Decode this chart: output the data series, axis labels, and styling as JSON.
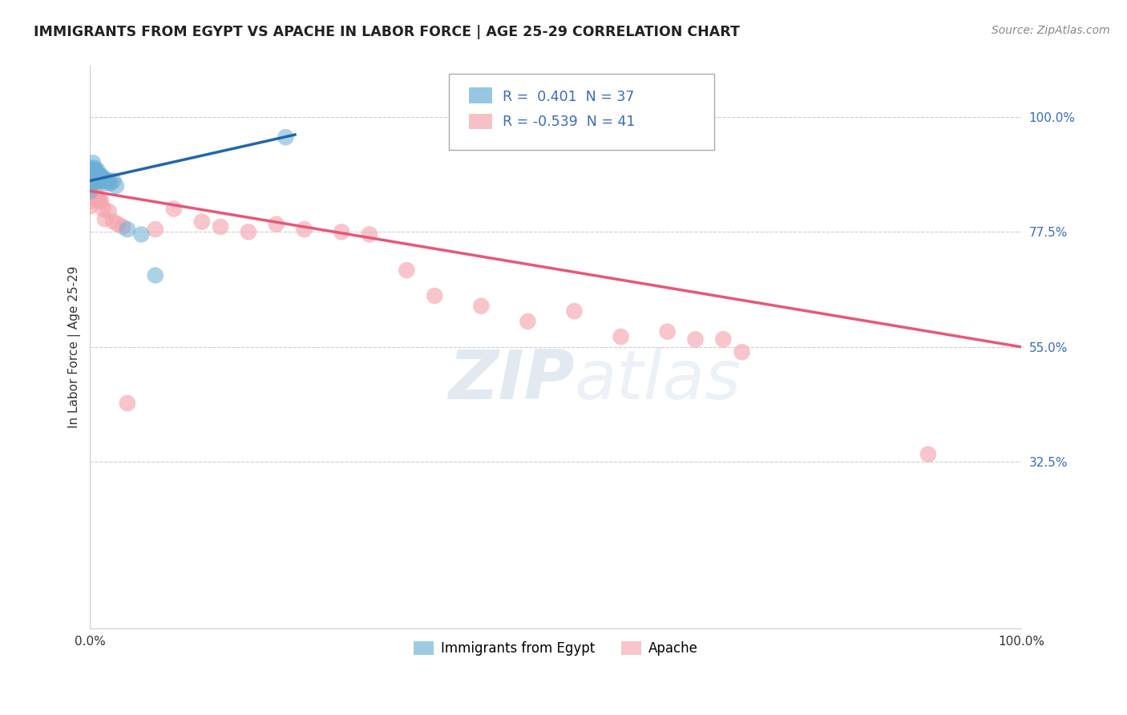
{
  "title": "IMMIGRANTS FROM EGYPT VS APACHE IN LABOR FORCE | AGE 25-29 CORRELATION CHART",
  "source": "Source: ZipAtlas.com",
  "ylabel": "In Labor Force | Age 25-29",
  "xlim": [
    0.0,
    1.0
  ],
  "ylim": [
    0.0,
    1.1
  ],
  "ytick_positions": [
    0.325,
    0.55,
    0.775,
    1.0
  ],
  "ytick_labels": [
    "32.5%",
    "55.0%",
    "77.5%",
    "100.0%"
  ],
  "legend_labels": [
    "Immigrants from Egypt",
    "Apache"
  ],
  "blue_R": "0.401",
  "blue_N": "37",
  "pink_R": "-0.539",
  "pink_N": "41",
  "blue_color": "#6baed6",
  "pink_color": "#f4a6b0",
  "blue_line_color": "#2166ac",
  "pink_line_color": "#e8567a",
  "watermark_zip": "ZIP",
  "watermark_atlas": "atlas",
  "blue_points_x": [
    0.0,
    0.0,
    0.0,
    0.0,
    0.0,
    0.0,
    0.003,
    0.003,
    0.003,
    0.004,
    0.004,
    0.005,
    0.005,
    0.006,
    0.006,
    0.007,
    0.008,
    0.008,
    0.009,
    0.009,
    0.01,
    0.01,
    0.011,
    0.012,
    0.013,
    0.014,
    0.015,
    0.016,
    0.018,
    0.02,
    0.022,
    0.025,
    0.028,
    0.04,
    0.055,
    0.07,
    0.21
  ],
  "blue_points_y": [
    0.9,
    0.89,
    0.875,
    0.87,
    0.865,
    0.855,
    0.91,
    0.895,
    0.885,
    0.895,
    0.88,
    0.9,
    0.885,
    0.895,
    0.88,
    0.875,
    0.895,
    0.875,
    0.885,
    0.875,
    0.885,
    0.875,
    0.88,
    0.885,
    0.88,
    0.875,
    0.88,
    0.875,
    0.87,
    0.875,
    0.87,
    0.875,
    0.865,
    0.78,
    0.77,
    0.69,
    0.96
  ],
  "pink_points_x": [
    0.0,
    0.0,
    0.0,
    0.0,
    0.0,
    0.003,
    0.004,
    0.005,
    0.006,
    0.007,
    0.008,
    0.009,
    0.01,
    0.012,
    0.014,
    0.016,
    0.02,
    0.025,
    0.03,
    0.035,
    0.04,
    0.07,
    0.09,
    0.12,
    0.14,
    0.17,
    0.2,
    0.23,
    0.27,
    0.3,
    0.34,
    0.37,
    0.42,
    0.47,
    0.52,
    0.57,
    0.62,
    0.65,
    0.68,
    0.7,
    0.9
  ],
  "pink_points_y": [
    0.86,
    0.855,
    0.845,
    0.835,
    0.825,
    0.86,
    0.855,
    0.85,
    0.845,
    0.84,
    0.845,
    0.84,
    0.835,
    0.835,
    0.82,
    0.8,
    0.815,
    0.795,
    0.79,
    0.785,
    0.44,
    0.78,
    0.82,
    0.795,
    0.785,
    0.775,
    0.79,
    0.78,
    0.775,
    0.77,
    0.7,
    0.65,
    0.63,
    0.6,
    0.62,
    0.57,
    0.58,
    0.565,
    0.565,
    0.54,
    0.34
  ],
  "blue_line_x": [
    0.0,
    0.22
  ],
  "blue_line_y": [
    0.875,
    0.965
  ],
  "pink_line_x": [
    0.0,
    1.0
  ],
  "pink_line_y": [
    0.855,
    0.55
  ]
}
